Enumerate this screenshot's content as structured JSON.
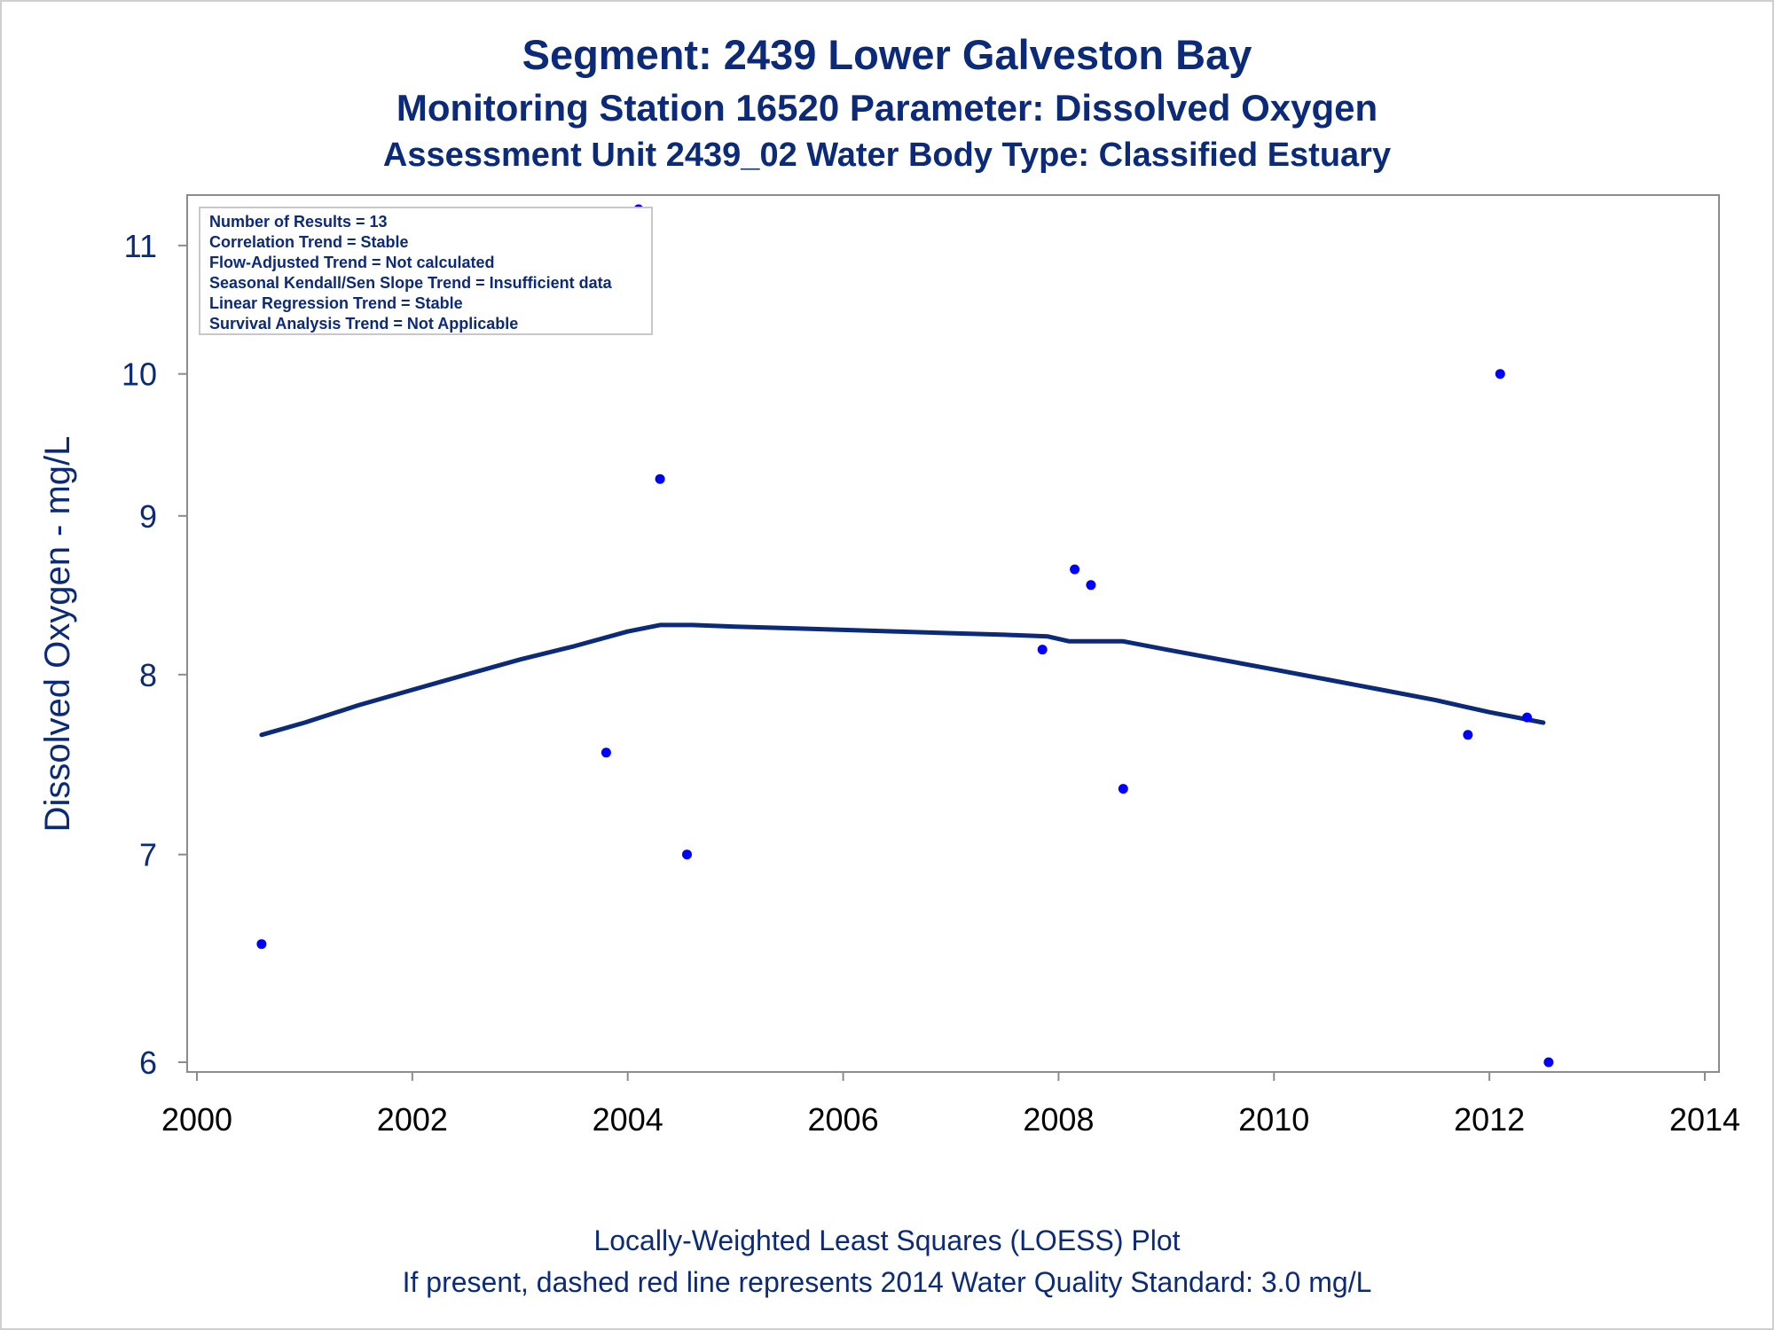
{
  "titles": {
    "line1": "Segment: 2439  Lower Galveston Bay",
    "line2": "Monitoring Station 16520 Parameter: Dissolved Oxygen",
    "line3": "Assessment Unit 2439_02   Water Body Type: Classified Estuary"
  },
  "footer": {
    "line1": "Locally-Weighted Least Squares (LOESS) Plot",
    "line2": "If present, dashed red line represents 2014 Water Quality Standard: 3.0 mg/L"
  },
  "chart_data": {
    "type": "scatter",
    "ylabel": "Dissolved Oxygen - mg/L",
    "xlabel": "",
    "xlim": [
      2000,
      2014
    ],
    "ylim": [
      6,
      11.3
    ],
    "y_scale": "log",
    "x_ticks": [
      2000,
      2002,
      2004,
      2006,
      2008,
      2010,
      2012,
      2014
    ],
    "y_ticks": [
      6,
      7,
      8,
      9,
      10,
      11
    ],
    "grid": false,
    "annotation_box": [
      "Number of Results = 13",
      "Correlation Trend = Stable",
      "Flow-Adjusted Trend = Not calculated",
      "Seasonal Kendall/Sen Slope Trend = Insufficient data",
      "Linear Regression Trend = Stable",
      "Survival Analysis Trend = Not Applicable"
    ],
    "colors": {
      "points": "#0000ff",
      "loess": "#0b2a7a",
      "text": "#0b2a7a",
      "axis": "#8c8c8c"
    },
    "series": [
      {
        "type": "scatter",
        "x": [
          2000.6,
          2003.8,
          2004.1,
          2004.3,
          2004.55,
          2007.85,
          2008.15,
          2008.3,
          2008.6,
          2011.8,
          2012.1,
          2012.35,
          2012.55
        ],
        "y": [
          6.55,
          7.55,
          11.3,
          9.25,
          7.0,
          8.15,
          8.65,
          8.55,
          7.35,
          7.65,
          10.0,
          7.75,
          6.0
        ]
      },
      {
        "type": "line",
        "x": [
          2000.6,
          2001.0,
          2001.5,
          2002.0,
          2002.5,
          2003.0,
          2003.5,
          2004.0,
          2004.3,
          2004.6,
          2005.0,
          2005.5,
          2006.0,
          2006.5,
          2007.0,
          2007.5,
          2007.9,
          2008.1,
          2008.6,
          2009.0,
          2009.5,
          2010.0,
          2010.5,
          2011.0,
          2011.5,
          2012.0,
          2012.5
        ],
        "y": [
          7.65,
          7.72,
          7.82,
          7.91,
          8.0,
          8.09,
          8.17,
          8.26,
          8.3,
          8.3,
          8.29,
          8.28,
          8.27,
          8.26,
          8.25,
          8.24,
          8.23,
          8.2,
          8.2,
          8.15,
          8.09,
          8.03,
          7.97,
          7.91,
          7.85,
          7.78,
          7.72
        ]
      }
    ]
  }
}
